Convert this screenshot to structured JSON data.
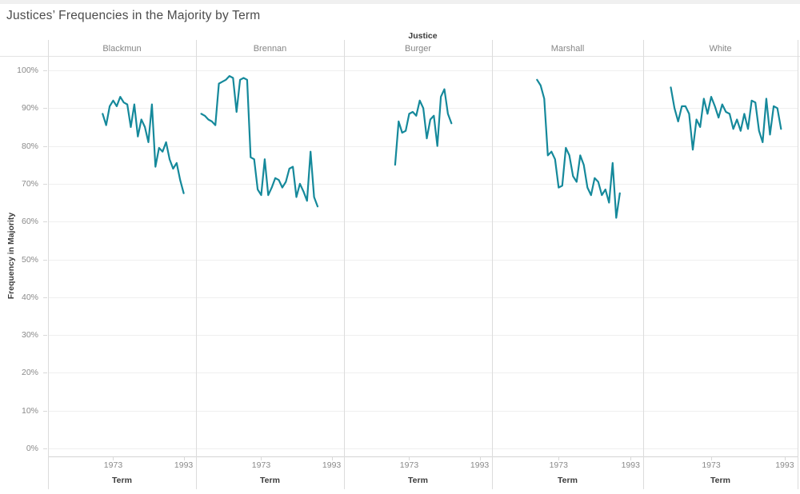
{
  "title": "Justices’ Frequencies in the Majority by Term",
  "chart_data": {
    "type": "line",
    "title": "Justices’ Frequencies in the Majority by Term",
    "facet_field": "Justice",
    "xlabel": "Term",
    "ylabel": "Frequency in Majority",
    "x_tick_years": [
      1973,
      1993
    ],
    "x_domain": [
      1954.5,
      1996.5
    ],
    "y_tick_values": [
      0,
      10,
      20,
      30,
      40,
      50,
      60,
      70,
      80,
      90,
      100
    ],
    "y_tick_labels": [
      "0%",
      "10%",
      "20%",
      "30%",
      "40%",
      "50%",
      "60%",
      "70%",
      "80%",
      "90%",
      "100%"
    ],
    "ylim": [
      0,
      104
    ],
    "grid": true,
    "legend": "none",
    "line_color": "#15899b",
    "series": [
      {
        "name": "Blackmun",
        "start_year": 1970,
        "values": [
          88.5,
          85.5,
          90.5,
          92,
          90.5,
          93,
          91.5,
          91,
          85,
          91,
          82.5,
          87,
          85,
          81,
          91,
          74.5,
          79.5,
          78.5,
          81,
          76.5,
          74,
          75.5,
          71,
          67.5
        ]
      },
      {
        "name": "Brennan",
        "start_year": 1956,
        "values": [
          88.5,
          88,
          87,
          86.5,
          85.5,
          96.5,
          97,
          97.5,
          98.5,
          98,
          89,
          97.5,
          98,
          97.5,
          77,
          76.5,
          68.5,
          67,
          76.5,
          67,
          69,
          71.5,
          71,
          69,
          70.5,
          74,
          74.5,
          66.5,
          70,
          68,
          65.5,
          78.5,
          66.5,
          64
        ]
      },
      {
        "name": "Burger",
        "start_year": 1969,
        "values": [
          75,
          86.5,
          83.5,
          84,
          88.5,
          89,
          88,
          92,
          90,
          82,
          87,
          88,
          80,
          93,
          95,
          88.5,
          86
        ]
      },
      {
        "name": "Marshall",
        "start_year": 1967,
        "values": [
          97.5,
          96,
          92.5,
          77.5,
          78.5,
          76.5,
          69,
          69.5,
          79.5,
          77.5,
          72,
          70.5,
          77.5,
          75,
          69,
          67,
          71.5,
          70.5,
          67,
          68.5,
          65,
          75.5,
          61,
          67.5
        ]
      },
      {
        "name": "White",
        "start_year": 1962,
        "values": [
          95.5,
          90,
          86.5,
          90.5,
          90.5,
          88.5,
          79,
          87,
          85,
          92.5,
          88.5,
          93,
          90.5,
          87.5,
          91,
          89,
          88.5,
          84.5,
          87,
          84,
          88.5,
          84.5,
          92,
          91.5,
          84,
          81,
          92.5,
          83,
          90.5,
          90,
          84.5
        ]
      }
    ]
  }
}
